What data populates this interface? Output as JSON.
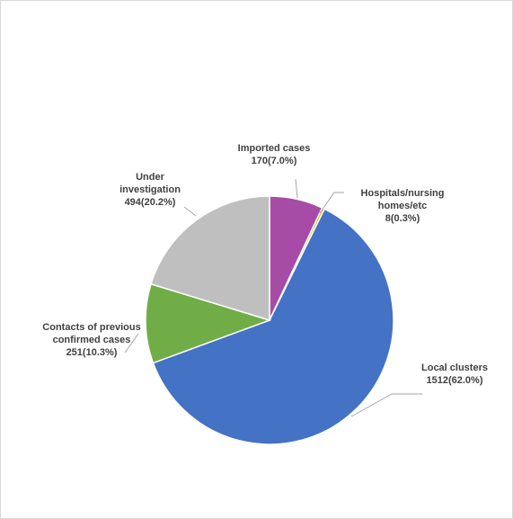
{
  "chart_data": {
    "type": "pie",
    "title": "",
    "start_angle_deg": 0,
    "direction": "clockwise",
    "slices": [
      {
        "name": "Imported cases",
        "value": 170,
        "percent": "7.0%",
        "color": "#a64ca6",
        "label_lines": [
          "Imported cases",
          "170(7.0%)"
        ]
      },
      {
        "name": "Hospitals/nursing homes/etc",
        "value": 8,
        "percent": "0.3%",
        "color": "#f4b400",
        "label_lines": [
          "Hospitals/nursing",
          "homes/etc",
          "8(0.3%)"
        ]
      },
      {
        "name": "Local clusters",
        "value": 1512,
        "percent": "62.0%",
        "color": "#4472c4",
        "label_lines": [
          "Local clusters",
          "1512(62.0%)"
        ]
      },
      {
        "name": "Contacts of previous confirmed cases",
        "value": 251,
        "percent": "10.3%",
        "color": "#70ad47",
        "label_lines": [
          "Contacts of previous",
          "confirmed cases",
          "251(10.3%)"
        ]
      },
      {
        "name": "Under investigation",
        "value": 494,
        "percent": "20.2%",
        "color": "#bfbfbf",
        "label_lines": [
          "Under",
          "investigation",
          "494(20.2%)"
        ]
      }
    ],
    "leader_line_color": "#a6a6a6",
    "slice_border_color": "#ffffff"
  }
}
